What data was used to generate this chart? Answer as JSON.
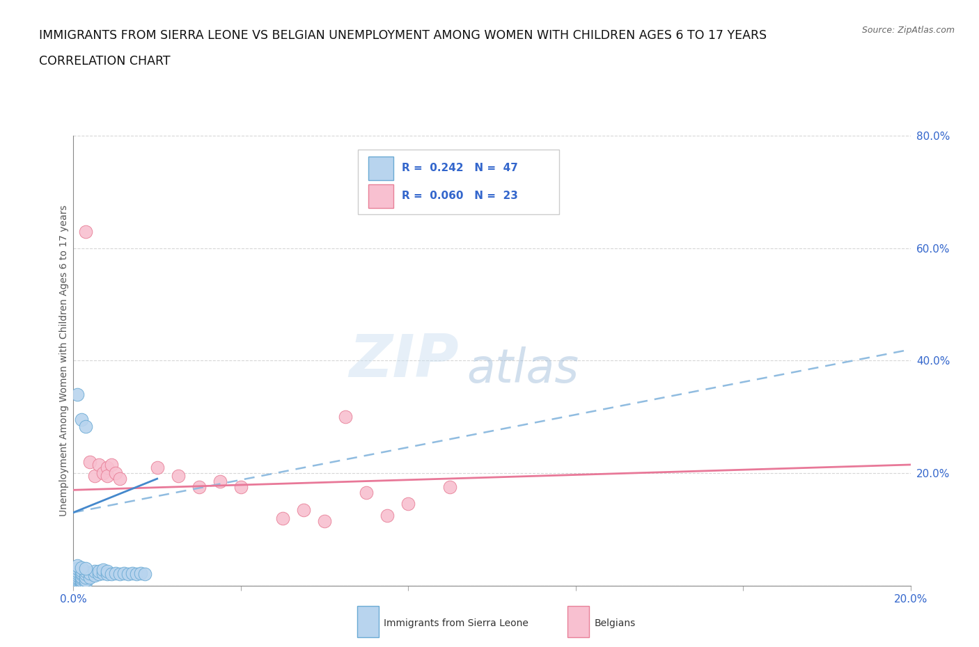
{
  "title_line1": "IMMIGRANTS FROM SIERRA LEONE VS BELGIAN UNEMPLOYMENT AMONG WOMEN WITH CHILDREN AGES 6 TO 17 YEARS",
  "title_line2": "CORRELATION CHART",
  "source": "Source: ZipAtlas.com",
  "ylabel": "Unemployment Among Women with Children Ages 6 to 17 years",
  "xlim": [
    0.0,
    0.2
  ],
  "ylim": [
    0.0,
    0.8
  ],
  "xticks": [
    0.0,
    0.04,
    0.08,
    0.12,
    0.16,
    0.2
  ],
  "yticks": [
    0.0,
    0.2,
    0.4,
    0.6,
    0.8
  ],
  "watermark_zip": "ZIP",
  "watermark_atlas": "atlas",
  "blue_color": "#b8d4ee",
  "blue_edge": "#6aaad4",
  "pink_color": "#f8c0d0",
  "pink_edge": "#e88098",
  "dashed_line_color": "#90bce0",
  "solid_line_color": "#e87898",
  "blue_solid_color": "#4488cc",
  "blue_scatter": [
    [
      0.001,
      0.005
    ],
    [
      0.001,
      0.007
    ],
    [
      0.001,
      0.01
    ],
    [
      0.001,
      0.012
    ],
    [
      0.001,
      0.015
    ],
    [
      0.001,
      0.018
    ],
    [
      0.001,
      0.022
    ],
    [
      0.001,
      0.025
    ],
    [
      0.001,
      0.03
    ],
    [
      0.002,
      0.004
    ],
    [
      0.002,
      0.007
    ],
    [
      0.002,
      0.01
    ],
    [
      0.002,
      0.013
    ],
    [
      0.002,
      0.016
    ],
    [
      0.002,
      0.02
    ],
    [
      0.002,
      0.023
    ],
    [
      0.002,
      0.027
    ],
    [
      0.003,
      0.006
    ],
    [
      0.003,
      0.01
    ],
    [
      0.003,
      0.015
    ],
    [
      0.003,
      0.02
    ],
    [
      0.003,
      0.025
    ],
    [
      0.004,
      0.015
    ],
    [
      0.004,
      0.022
    ],
    [
      0.005,
      0.018
    ],
    [
      0.005,
      0.025
    ],
    [
      0.006,
      0.02
    ],
    [
      0.006,
      0.025
    ],
    [
      0.007,
      0.022
    ],
    [
      0.007,
      0.028
    ],
    [
      0.008,
      0.02
    ],
    [
      0.008,
      0.025
    ],
    [
      0.001,
      0.035
    ],
    [
      0.002,
      0.032
    ],
    [
      0.003,
      0.03
    ],
    [
      0.001,
      0.34
    ],
    [
      0.002,
      0.295
    ],
    [
      0.003,
      0.283
    ],
    [
      0.009,
      0.02
    ],
    [
      0.01,
      0.022
    ],
    [
      0.011,
      0.02
    ],
    [
      0.012,
      0.022
    ],
    [
      0.013,
      0.02
    ],
    [
      0.014,
      0.022
    ],
    [
      0.015,
      0.02
    ],
    [
      0.016,
      0.022
    ],
    [
      0.017,
      0.02
    ]
  ],
  "pink_scatter": [
    [
      0.004,
      0.22
    ],
    [
      0.005,
      0.195
    ],
    [
      0.006,
      0.215
    ],
    [
      0.007,
      0.2
    ],
    [
      0.008,
      0.21
    ],
    [
      0.008,
      0.195
    ],
    [
      0.009,
      0.215
    ],
    [
      0.01,
      0.2
    ],
    [
      0.011,
      0.19
    ],
    [
      0.02,
      0.21
    ],
    [
      0.025,
      0.195
    ],
    [
      0.03,
      0.175
    ],
    [
      0.035,
      0.185
    ],
    [
      0.04,
      0.175
    ],
    [
      0.05,
      0.12
    ],
    [
      0.055,
      0.135
    ],
    [
      0.06,
      0.115
    ],
    [
      0.065,
      0.3
    ],
    [
      0.07,
      0.165
    ],
    [
      0.075,
      0.125
    ],
    [
      0.08,
      0.145
    ],
    [
      0.09,
      0.175
    ],
    [
      0.003,
      0.63
    ]
  ],
  "blue_reg": [
    0.0,
    0.13,
    0.2,
    0.42
  ],
  "pink_reg": [
    0.0,
    0.17,
    0.2,
    0.215
  ],
  "background_color": "#ffffff",
  "grid_color": "#cccccc",
  "label_color": "#3366cc",
  "text_color": "#333333"
}
